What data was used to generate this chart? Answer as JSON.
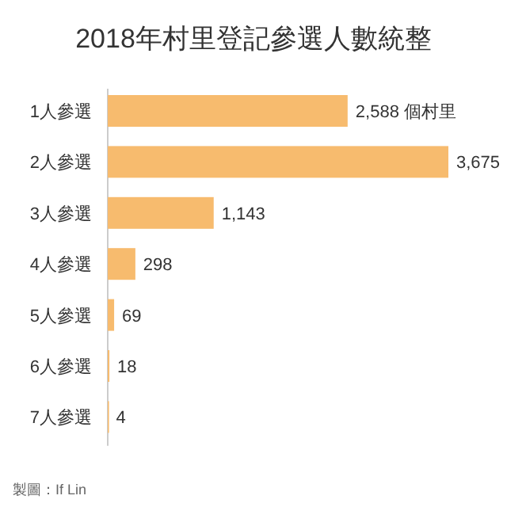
{
  "chart_data": {
    "type": "bar",
    "orientation": "horizontal",
    "title": "2018年村里登記參選人數統整",
    "categories": [
      "1人參選",
      "2人參選",
      "3人參選",
      "4人參選",
      "5人參選",
      "6人參選",
      "7人參選"
    ],
    "values": [
      2588,
      3675,
      1143,
      298,
      69,
      18,
      4
    ],
    "color": "#f7bb6e",
    "value_labels": [
      "2,588 個村里",
      "3,675",
      "1,143",
      "298",
      "69",
      "18",
      "4"
    ],
    "annotations": [
      "製圖：If Lin"
    ]
  }
}
